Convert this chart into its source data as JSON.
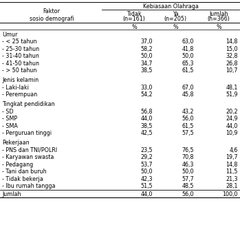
{
  "title_col1": "Faktor\nsosio demografi",
  "title_header": "Kebiasaan Olahraga",
  "col2_label": "Tidak",
  "col2_n": "(n=161)",
  "col3_label": "Ya",
  "col3_n": "(n=205)",
  "col4_label": "Jumlah",
  "col4_n": "(n=366)",
  "pct_label": "%",
  "rows": [
    {
      "label": "Umur",
      "type": "header",
      "c2": "",
      "c3": "",
      "c4": ""
    },
    {
      "label": "- < 25 tahun",
      "type": "data",
      "c2": "37,0",
      "c3": "63,0",
      "c4": "14,8"
    },
    {
      "label": "- 25-30 tahun",
      "type": "data",
      "c2": "58,2",
      "c3": "41,8",
      "c4": "15,0"
    },
    {
      "label": "- 31-40 tahun",
      "type": "data",
      "c2": "50,0",
      "c3": "50,0",
      "c4": "32,8"
    },
    {
      "label": "- 41-50 tahun",
      "type": "data",
      "c2": "34,7",
      "c3": "65,3",
      "c4": "26,8"
    },
    {
      "label": "- > 50 tahun",
      "type": "data",
      "c2": "38,5",
      "c3": "61,5",
      "c4": "10,7"
    },
    {
      "label": "",
      "type": "spacer",
      "c2": "",
      "c3": "",
      "c4": ""
    },
    {
      "label": "Jenis kelamin",
      "type": "header",
      "c2": "",
      "c3": "",
      "c4": ""
    },
    {
      "label": "- Laki-laki",
      "type": "data",
      "c2": "33,0",
      "c3": "67,0",
      "c4": "48,1"
    },
    {
      "label": "- Perempuan",
      "type": "data",
      "c2": "54,2",
      "c3": "45,8",
      "c4": "51,9"
    },
    {
      "label": "",
      "type": "spacer",
      "c2": "",
      "c3": "",
      "c4": ""
    },
    {
      "label": "Tingkat pendidikan",
      "type": "header",
      "c2": "",
      "c3": "",
      "c4": ""
    },
    {
      "label": "- SD",
      "type": "data",
      "c2": "56,8",
      "c3": "43,2",
      "c4": "20,2"
    },
    {
      "label": "- SMP",
      "type": "data",
      "c2": "44,0",
      "c3": "56,0",
      "c4": "24,9"
    },
    {
      "label": "- SMA",
      "type": "data",
      "c2": "38,5",
      "c3": "61,5",
      "c4": "44,0"
    },
    {
      "label": "- Perguruan tinggi",
      "type": "data",
      "c2": "42,5",
      "c3": "57,5",
      "c4": "10,9"
    },
    {
      "label": "",
      "type": "spacer",
      "c2": "",
      "c3": "",
      "c4": ""
    },
    {
      "label": "Pekerjaan",
      "type": "header",
      "c2": "",
      "c3": "",
      "c4": ""
    },
    {
      "label": "- PNS dan TNI/POLRI",
      "type": "data",
      "c2": "23,5",
      "c3": "76,5",
      "c4": "4,6"
    },
    {
      "label": "- Karyawan swasta",
      "type": "data",
      "c2": "29,2",
      "c3": "70,8",
      "c4": "19,7"
    },
    {
      "label": "- Pedagang",
      "type": "data",
      "c2": "53,7",
      "c3": "46,3",
      "c4": "14,8"
    },
    {
      "label": "- Tani dan buruh",
      "type": "data",
      "c2": "50,0",
      "c3": "50,0",
      "c4": "11,5"
    },
    {
      "label": "- Tidak bekerja",
      "type": "data",
      "c2": "42,3",
      "c3": "57,7",
      "c4": "21,3"
    },
    {
      "label": "- Ibu rumah tangga",
      "type": "data",
      "c2": "51,5",
      "c3": "48,5",
      "c4": "28,1"
    },
    {
      "label": "Jumlah",
      "type": "total",
      "c2": "44,0",
      "c3": "56,0",
      "c4": "100,0"
    }
  ],
  "bg_color": "#ffffff",
  "text_color": "#000000",
  "font_size": 5.8,
  "font_family": "DejaVu Sans"
}
